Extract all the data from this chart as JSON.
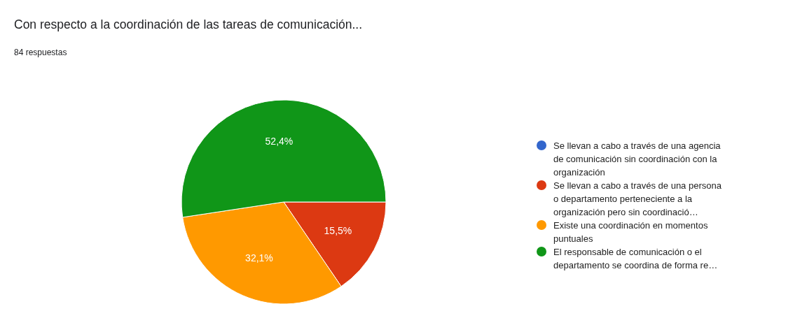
{
  "chart_data": {
    "type": "pie",
    "title": "Con respecto a la coordinación de las tareas de comunicación...",
    "subtitle": "84 respuestas",
    "categories": [
      "Se llevan a cabo a través de una agencia de comunicación sin coordinación con la organización",
      "Se llevan a cabo a través de una persona o departamento perteneciente a la organización pero sin coordinació…",
      "Existe una coordinación en momentos puntuales",
      "El responsable de comunicación o el departamento se coordina de forma re…"
    ],
    "values": [
      0,
      15.5,
      32.1,
      52.4
    ],
    "colors": [
      "#3366cc",
      "#dc3912",
      "#ff9900",
      "#109618"
    ],
    "value_labels": [
      null,
      "15,5%",
      "32,1%",
      "52,4%"
    ],
    "legend": "right"
  }
}
